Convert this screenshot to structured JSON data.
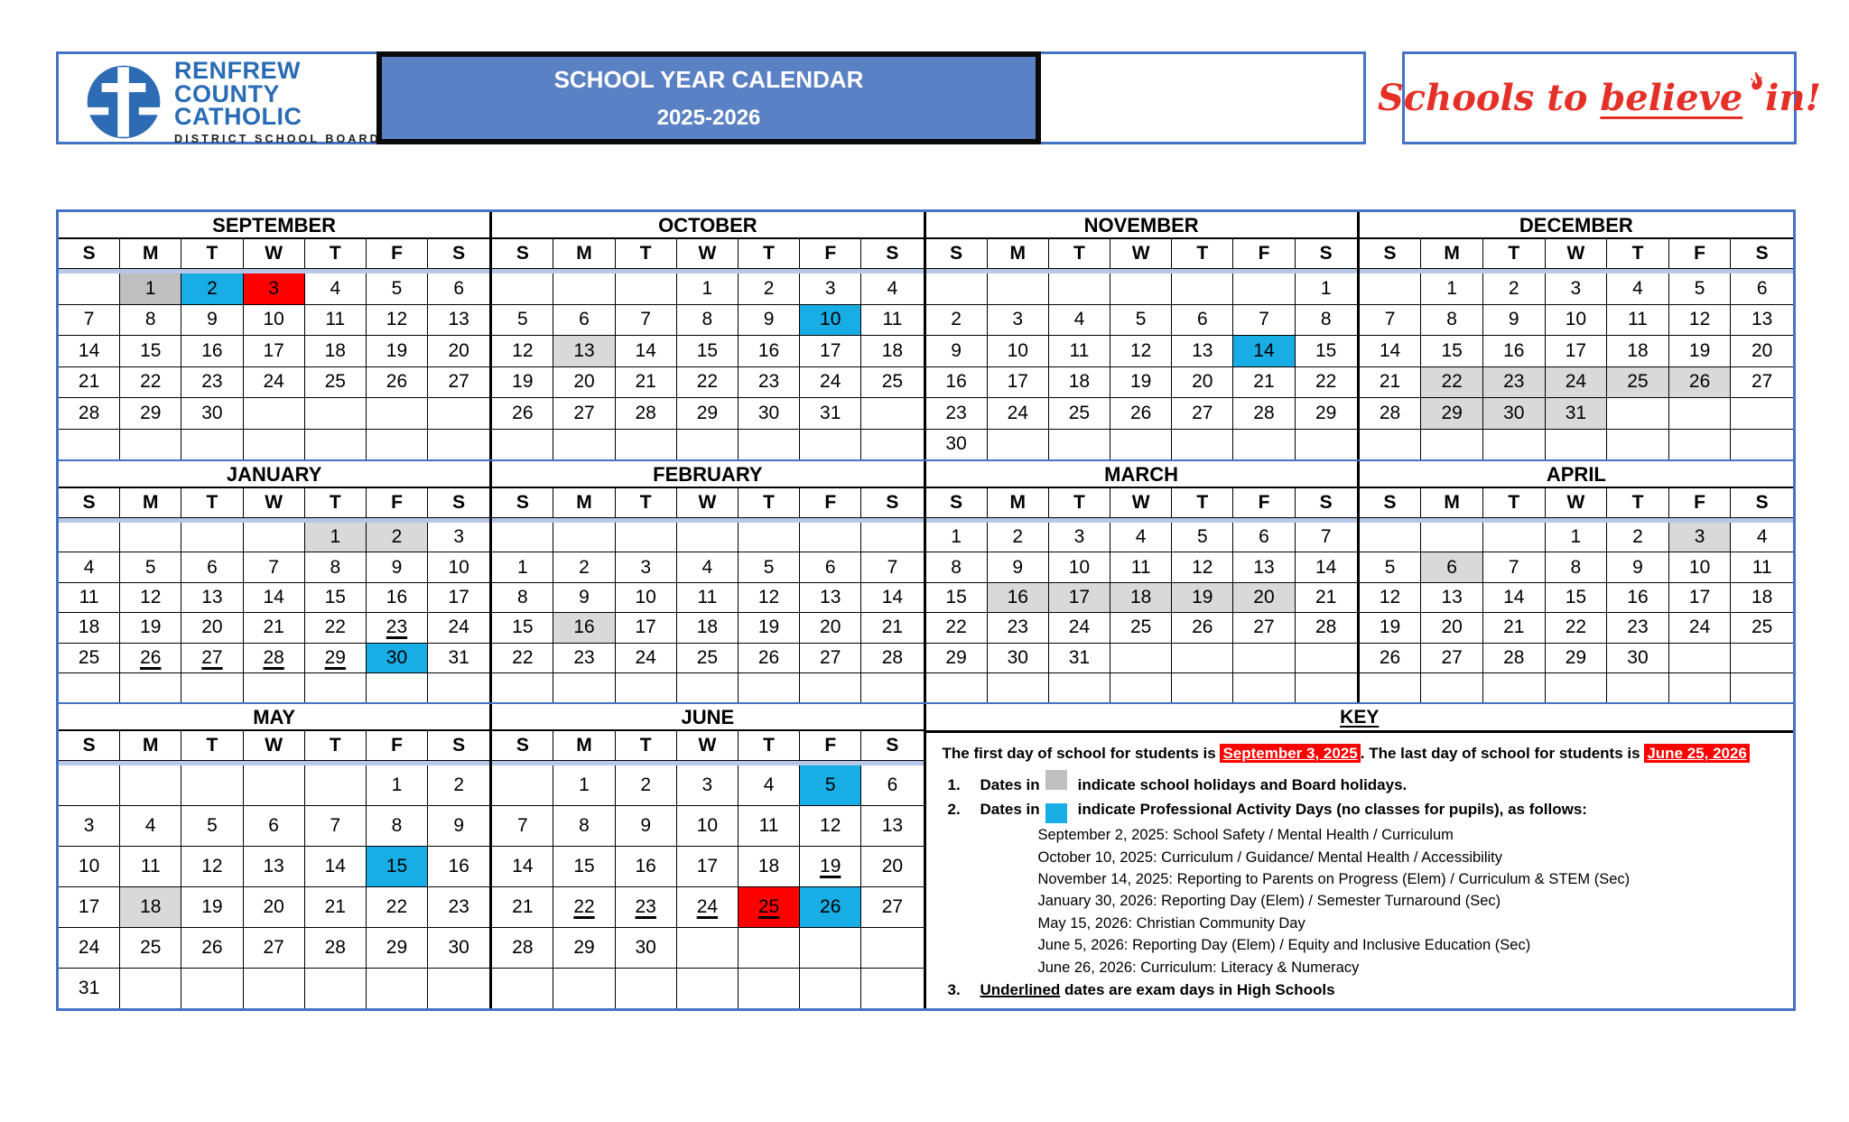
{
  "header": {
    "board_name_lines": [
      "RENFREW",
      "COUNTY",
      "CATHOLIC"
    ],
    "board_subtitle": "DISTRICT SCHOOL BOARD",
    "title_line1": "SCHOOL YEAR CALENDAR",
    "title_line2": "2025-2026",
    "tagline_pre": "Schools to ",
    "tagline_underlined": "believe",
    "tagline_post": "in!"
  },
  "colors": {
    "border_blue": "#4472c4",
    "title_fill": "#5b81c5",
    "pa_day_blue": "#18ade5",
    "first_last_day_red": "#ff0000",
    "holiday_gray_dark": "#bfbfbf",
    "holiday_gray_light": "#d9d9d9",
    "header_separator_blue": "#b7c7e8",
    "tagline_red": "#e53028",
    "logo_blue": "#2d6cb5"
  },
  "day_headers": [
    "S",
    "M",
    "T",
    "W",
    "T",
    "F",
    "S"
  ],
  "cell_flag_legend": "g=light gray holiday, G=dark gray holiday, b=blue PA day, r=red first/last day, u=underlined exam day",
  "months": [
    {
      "name": "SEPTEMBER",
      "weeks": [
        [
          "",
          "1*G",
          "2*b",
          "3*r",
          "4",
          "5",
          "6"
        ],
        [
          "7",
          "8",
          "9",
          "10",
          "11",
          "12",
          "13"
        ],
        [
          "14",
          "15",
          "16",
          "17",
          "18",
          "19",
          "20"
        ],
        [
          "21",
          "22",
          "23",
          "24",
          "25",
          "26",
          "27"
        ],
        [
          "28",
          "29",
          "30",
          "",
          "",
          "",
          ""
        ],
        [
          "",
          "",
          "",
          "",
          "",
          "",
          ""
        ]
      ]
    },
    {
      "name": "OCTOBER",
      "weeks": [
        [
          "",
          "",
          "",
          "1",
          "2",
          "3",
          "4"
        ],
        [
          "5",
          "6",
          "7",
          "8",
          "9",
          "10*b",
          "11"
        ],
        [
          "12",
          "13*g",
          "14",
          "15",
          "16",
          "17",
          "18"
        ],
        [
          "19",
          "20",
          "21",
          "22",
          "23",
          "24",
          "25"
        ],
        [
          "26",
          "27",
          "28",
          "29",
          "30",
          "31",
          ""
        ],
        [
          "",
          "",
          "",
          "",
          "",
          "",
          ""
        ]
      ]
    },
    {
      "name": "NOVEMBER",
      "weeks": [
        [
          "",
          "",
          "",
          "",
          "",
          "",
          "1"
        ],
        [
          "2",
          "3",
          "4",
          "5",
          "6",
          "7",
          "8"
        ],
        [
          "9",
          "10",
          "11",
          "12",
          "13",
          "14*b",
          "15"
        ],
        [
          "16",
          "17",
          "18",
          "19",
          "20",
          "21",
          "22"
        ],
        [
          "23",
          "24",
          "25",
          "26",
          "27",
          "28",
          "29"
        ],
        [
          "30",
          "",
          "",
          "",
          "",
          "",
          ""
        ]
      ]
    },
    {
      "name": "DECEMBER",
      "weeks": [
        [
          "",
          "1",
          "2",
          "3",
          "4",
          "5",
          "6"
        ],
        [
          "7",
          "8",
          "9",
          "10",
          "11",
          "12",
          "13"
        ],
        [
          "14",
          "15",
          "16",
          "17",
          "18",
          "19",
          "20"
        ],
        [
          "21",
          "22*g",
          "23*g",
          "24*g",
          "25*g",
          "26*g",
          "27"
        ],
        [
          "28",
          "29*g",
          "30*g",
          "31*g",
          "",
          "",
          ""
        ],
        [
          "",
          "",
          "",
          "",
          "",
          "",
          ""
        ]
      ]
    },
    {
      "name": "JANUARY",
      "weeks": [
        [
          "",
          "",
          "",
          "",
          "1*g",
          "2*g",
          "3"
        ],
        [
          "4",
          "5",
          "6",
          "7",
          "8",
          "9",
          "10"
        ],
        [
          "11",
          "12",
          "13",
          "14",
          "15",
          "16",
          "17"
        ],
        [
          "18",
          "19",
          "20",
          "21",
          "22",
          "23*u",
          "24"
        ],
        [
          "25",
          "26*u",
          "27*u",
          "28*u",
          "29*u",
          "30*b",
          "31"
        ],
        [
          "",
          "",
          "",
          "",
          "",
          "",
          ""
        ]
      ]
    },
    {
      "name": "FEBRUARY",
      "weeks": [
        [
          "",
          "",
          "",
          "",
          "",
          "",
          ""
        ],
        [
          "1",
          "2",
          "3",
          "4",
          "5",
          "6",
          "7"
        ],
        [
          "8",
          "9",
          "10",
          "11",
          "12",
          "13",
          "14"
        ],
        [
          "15",
          "16*g",
          "17",
          "18",
          "19",
          "20",
          "21"
        ],
        [
          "22",
          "23",
          "24",
          "25",
          "26",
          "27",
          "28"
        ],
        [
          "",
          "",
          "",
          "",
          "",
          "",
          ""
        ]
      ]
    },
    {
      "name": "MARCH",
      "weeks": [
        [
          "1",
          "2",
          "3",
          "4",
          "5",
          "6",
          "7"
        ],
        [
          "8",
          "9",
          "10",
          "11",
          "12",
          "13",
          "14"
        ],
        [
          "15",
          "16*g",
          "17*g",
          "18*g",
          "19*g",
          "20*g",
          "21"
        ],
        [
          "22",
          "23",
          "24",
          "25",
          "26",
          "27",
          "28"
        ],
        [
          "29",
          "30",
          "31",
          "",
          "",
          "",
          ""
        ],
        [
          "",
          "",
          "",
          "",
          "",
          "",
          ""
        ]
      ]
    },
    {
      "name": "APRIL",
      "weeks": [
        [
          "",
          "",
          "",
          "1",
          "2",
          "3*g",
          "4"
        ],
        [
          "5",
          "6*g",
          "7",
          "8",
          "9",
          "10",
          "11"
        ],
        [
          "12",
          "13",
          "14",
          "15",
          "16",
          "17",
          "18"
        ],
        [
          "19",
          "20",
          "21",
          "22",
          "23",
          "24",
          "25"
        ],
        [
          "26",
          "27",
          "28",
          "29",
          "30",
          "",
          ""
        ],
        [
          "",
          "",
          "",
          "",
          "",
          "",
          ""
        ]
      ]
    },
    {
      "name": "MAY",
      "weeks": [
        [
          "",
          "",
          "",
          "",
          "",
          "1",
          "2"
        ],
        [
          "3",
          "4",
          "5",
          "6",
          "7",
          "8",
          "9"
        ],
        [
          "10",
          "11",
          "12",
          "13",
          "14",
          "15*b",
          "16"
        ],
        [
          "17",
          "18*g",
          "19",
          "20",
          "21",
          "22",
          "23"
        ],
        [
          "24",
          "25",
          "26",
          "27",
          "28",
          "29",
          "30"
        ],
        [
          "31",
          "",
          "",
          "",
          "",
          "",
          ""
        ]
      ]
    },
    {
      "name": "JUNE",
      "weeks": [
        [
          "",
          "1",
          "2",
          "3",
          "4",
          "5*b",
          "6"
        ],
        [
          "7",
          "8",
          "9",
          "10",
          "11",
          "12",
          "13"
        ],
        [
          "14",
          "15",
          "16",
          "17",
          "18",
          "19*u",
          "20"
        ],
        [
          "21",
          "22*u",
          "23*u",
          "24*u",
          "25*ru",
          "26*b",
          "27"
        ],
        [
          "28",
          "29",
          "30",
          "",
          "",
          "",
          ""
        ],
        [
          "",
          "",
          "",
          "",
          "",
          "",
          ""
        ]
      ]
    }
  ],
  "key": {
    "title": "KEY",
    "intro": {
      "pre": "The first day of school for students is ",
      "first_day": "September 3, 2025",
      "mid": ". The last day of school for students is ",
      "last_day": "June 25, 2026"
    },
    "items": [
      {
        "num": "1.",
        "pre": "Dates in",
        "swatch": "gray",
        "post": "indicate school holidays and Board holidays."
      },
      {
        "num": "2.",
        "pre": "Dates in",
        "swatch": "blue",
        "post": "indicate Professional Activity Days (no classes for pupils), as follows:"
      },
      {
        "num": "3.",
        "underlined": "Underlined",
        "post": " dates are exam days in High Schools"
      }
    ],
    "pa_days": [
      "September 2, 2025: School Safety / Mental Health / Curriculum",
      "October 10, 2025: Curriculum / Guidance/ Mental Health / Accessibility",
      "November 14, 2025: Reporting to Parents on Progress (Elem) / Curriculum & STEM (Sec)",
      "January 30, 2026: Reporting Day (Elem) / Semester Turnaround (Sec)",
      "May 15, 2026: Christian Community Day",
      "June 5, 2026: Reporting Day (Elem) / Equity and Inclusive Education (Sec)",
      "June 26, 2026: Curriculum: Literacy & Numeracy"
    ]
  }
}
